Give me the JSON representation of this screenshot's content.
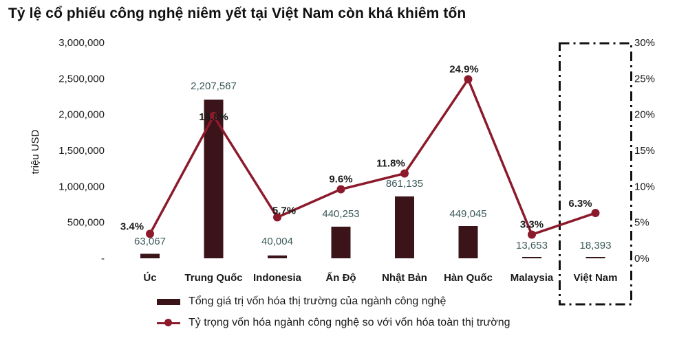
{
  "chart_data": {
    "type": "bar",
    "title": "Tỷ lệ cổ phiếu công nghệ niêm yết tại Việt Nam còn khá khiêm tốn",
    "ylabel": "triệu USD",
    "categories": [
      "Úc",
      "Trung Quốc",
      "Indonesia",
      "Ấn Độ",
      "Nhật Bản",
      "Hàn Quốc",
      "Malaysia",
      "Việt Nam"
    ],
    "series": [
      {
        "name": "Tổng giá trị vốn hóa thị trường của ngành công nghệ",
        "type": "bar",
        "axis": "left",
        "values": [
          63067,
          2207567,
          40004,
          440253,
          861135,
          449045,
          13653,
          18393
        ],
        "labels": [
          "63,067",
          "2,207,567",
          "40,004",
          "440,253",
          "861,135",
          "449,045",
          "13,653",
          "18,393"
        ],
        "color": "#3b1419"
      },
      {
        "name": "Tỷ trọng vốn hóa ngành công nghệ so với vốn hóa toàn thị trường",
        "type": "line",
        "axis": "right",
        "values": [
          3.4,
          19.8,
          5.7,
          9.6,
          11.8,
          24.9,
          3.3,
          6.3
        ],
        "labels": [
          "3.4%",
          "19.8%",
          "5.7%",
          "9.6%",
          "11.8%",
          "24.9%",
          "3.3%",
          "6.3%"
        ],
        "color": "#8b1a2c"
      }
    ],
    "y_left": {
      "range": [
        0,
        3000000
      ],
      "ticks": [
        0,
        500000,
        1000000,
        1500000,
        2000000,
        2500000,
        3000000
      ],
      "tick_labels": [
        "-",
        "500,000",
        "1,000,000",
        "1,500,000",
        "2,000,000",
        "2,500,000",
        "3,000,000"
      ]
    },
    "y_right": {
      "range": [
        0,
        30
      ],
      "ticks": [
        0,
        5,
        10,
        15,
        20,
        25,
        30
      ],
      "tick_labels": [
        "0%",
        "5%",
        "10%",
        "15%",
        "20%",
        "25%",
        "30%"
      ]
    },
    "highlight": {
      "category": "Việt Nam",
      "style": "dash-dot box"
    },
    "grid": false,
    "legend_position": "bottom"
  }
}
